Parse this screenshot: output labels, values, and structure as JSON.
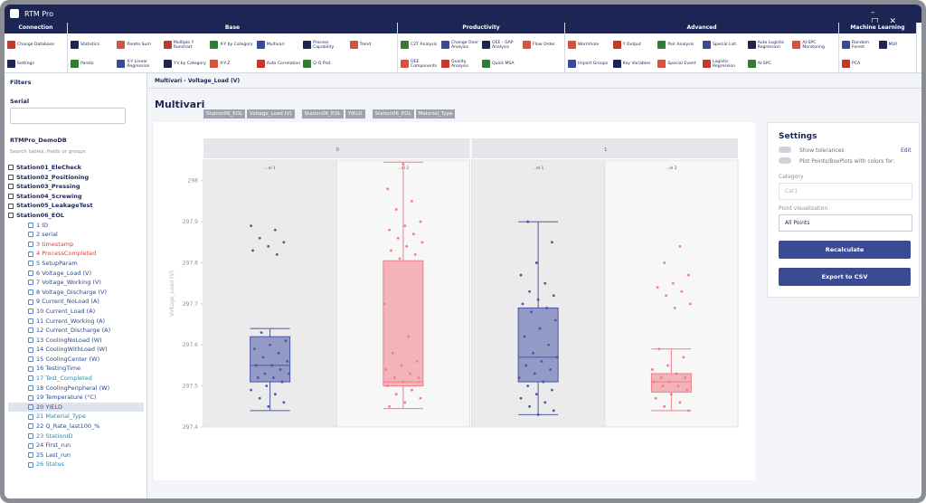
{
  "app": {
    "title": "RTM Pro"
  },
  "ribbon": {
    "groups": [
      {
        "name": "Connection",
        "buttons": [
          "Change Database",
          "Settings"
        ]
      },
      {
        "name": "Base",
        "buttons": [
          "Statistics",
          "Pareto",
          "Pareto Sum",
          "X-Y Linear Regression",
          "Multiple Y Runchart",
          "Y's by Category",
          "X-Y by Category",
          "X-Y-Z",
          "Multivari",
          "Auto Correlation",
          "Process Capability",
          "Q-Q Plot",
          "Trend"
        ]
      },
      {
        "name": "Productivity",
        "buttons": [
          "C2T Analysis",
          "OEE Components",
          "Change Over Analysis",
          "Quality Analysis",
          "OEE - GAP Analysis",
          "Quick MSA",
          "Flow Order"
        ]
      },
      {
        "name": "Advanced",
        "buttons": [
          "Wormhole",
          "Import Groups",
          "Y Output",
          "Key Variables",
          "Pair Analysis",
          "Special Event",
          "Special List",
          "Logistic Regression",
          "Auto Logistic Regression",
          "AI-SPC",
          "AI-SPC Monitoring"
        ]
      },
      {
        "name": "Machine Learning",
        "buttons": [
          "Random Forest",
          "PCA",
          "MLR"
        ]
      }
    ]
  },
  "filters": {
    "title": "Filters",
    "serial_label": "Serial",
    "db_name": "RTMPro_DemoDB",
    "search_placeholder": "Search tables, fields or groups",
    "tables": [
      "Station01_EleCheck",
      "Station02_Positioning",
      "Station03_Pressing",
      "Station04_Screwing",
      "Station05_LeakageTest",
      "Station06_EOL"
    ],
    "fields": [
      {
        "label": "1 ID",
        "color": "#2b4a8a"
      },
      {
        "label": "2 serial",
        "color": "#2b4a8a"
      },
      {
        "label": "3 timestamp",
        "color": "#e03a3a"
      },
      {
        "label": "4 ProcessCompleted",
        "color": "#e03a3a"
      },
      {
        "label": "5 SetupParam",
        "color": "#2b4a8a"
      },
      {
        "label": "6 Voltage_Load (V)",
        "color": "#2b4a8a"
      },
      {
        "label": "7 Voltage_Working (V)",
        "color": "#2b4a8a"
      },
      {
        "label": "8 Voltage_Discharge (V)",
        "color": "#2b4a8a"
      },
      {
        "label": "9 Current_NoLoad (A)",
        "color": "#2b4a8a"
      },
      {
        "label": "10 Current_Load (A)",
        "color": "#2b4a8a"
      },
      {
        "label": "11 Current_Working (A)",
        "color": "#2b4a8a"
      },
      {
        "label": "12 Current_Discharge (A)",
        "color": "#2b4a8a"
      },
      {
        "label": "13 CoolingNoLoad (W)",
        "color": "#2b4a8a"
      },
      {
        "label": "14 CoolingWithLoad (W)",
        "color": "#2b4a8a"
      },
      {
        "label": "15 CoolingCenter (W)",
        "color": "#2b4a8a"
      },
      {
        "label": "16 TestingTime",
        "color": "#2b4a8a"
      },
      {
        "label": "17 Test_Completed",
        "color": "#2a8ab0"
      },
      {
        "label": "18 CoolingPeripheral (W)",
        "color": "#2b4a8a"
      },
      {
        "label": "19 Temperature (°C)",
        "color": "#2b4a8a"
      },
      {
        "label": "20 YIELD",
        "color": "#2b4a8a"
      },
      {
        "label": "21 Material_Type",
        "color": "#2a8ab0"
      },
      {
        "label": "22 Q_Rate_last100_%",
        "color": "#2b4a8a"
      },
      {
        "label": "23 StationID",
        "color": "#2a8ab0"
      },
      {
        "label": "24 First_run",
        "color": "#2b4a8a"
      },
      {
        "label": "25 Last_run",
        "color": "#2b4a8a"
      },
      {
        "label": "26 Status",
        "color": "#2a8ab0"
      }
    ]
  },
  "tab": "Multivari - Voltage_Load (V)",
  "chart_header": {
    "title": "Multivari",
    "chips": [
      "Station06_EOL",
      "Voltage_Load (V)",
      "Station06_EOL",
      "YIELD",
      "Station06_EOL",
      "Material_Type"
    ]
  },
  "settings": {
    "title": "Settings",
    "show_tolerances": "Show tolerances",
    "edit": "Edit",
    "plot_colors": "Plot Points/BoxPlots with colors for:",
    "category_label": "Category",
    "category_value": "Cat1",
    "point_vis_label": "Point visualization",
    "point_vis_value": "All Points",
    "recalculate": "Recalculate",
    "export": "Export to CSV"
  },
  "chart_data": {
    "type": "multivari",
    "y_label": "Voltage_Load (V)",
    "ylim": [
      297.4,
      298.05
    ],
    "yticks": [
      297.4,
      297.5,
      297.6,
      297.7,
      297.8,
      297.9,
      298
    ],
    "panels": [
      {
        "name": "0",
        "groups": [
          {
            "name": "...el 1",
            "color": "#4a57a8",
            "whisker_low": 297.44,
            "q1": 297.51,
            "median": 297.55,
            "q3": 297.62,
            "whisker_high": 297.64,
            "points": [
              297.89,
              297.88,
              297.86,
              297.85,
              297.84,
              297.83,
              297.82,
              297.63,
              297.61,
              297.6,
              297.59,
              297.58,
              297.57,
              297.56,
              297.55,
              297.55,
              297.54,
              297.53,
              297.53,
              297.52,
              297.52,
              297.51,
              297.5,
              297.49,
              297.48,
              297.47,
              297.46,
              297.45
            ]
          },
          {
            "name": "...el 2",
            "color": "#f07e86",
            "whisker_low": 297.445,
            "q1": 297.5,
            "median": 297.51,
            "q3": 297.805,
            "whisker_high": 298.045,
            "points": [
              298.04,
              297.98,
              297.95,
              297.93,
              297.9,
              297.89,
              297.88,
              297.87,
              297.86,
              297.85,
              297.84,
              297.83,
              297.82,
              297.81,
              297.7,
              297.62,
              297.58,
              297.56,
              297.55,
              297.54,
              297.53,
              297.52,
              297.52,
              297.51,
              297.5,
              297.49,
              297.48,
              297.47,
              297.46,
              297.45
            ]
          }
        ]
      },
      {
        "name": "1",
        "groups": [
          {
            "name": "...el 1",
            "color": "#4a57a8",
            "whisker_low": 297.43,
            "q1": 297.51,
            "median": 297.57,
            "q3": 297.69,
            "whisker_high": 297.9,
            "points": [
              297.9,
              297.85,
              297.8,
              297.77,
              297.75,
              297.73,
              297.72,
              297.71,
              297.7,
              297.69,
              297.68,
              297.66,
              297.64,
              297.62,
              297.6,
              297.58,
              297.57,
              297.56,
              297.55,
              297.54,
              297.53,
              297.52,
              297.51,
              297.5,
              297.49,
              297.48,
              297.47,
              297.46,
              297.45,
              297.44,
              297.43
            ]
          },
          {
            "name": "...el 2",
            "color": "#f07e86",
            "whisker_low": 297.44,
            "q1": 297.485,
            "median": 297.51,
            "q3": 297.53,
            "whisker_high": 297.59,
            "points": [
              297.84,
              297.8,
              297.77,
              297.75,
              297.74,
              297.73,
              297.72,
              297.7,
              297.69,
              297.59,
              297.57,
              297.55,
              297.54,
              297.53,
              297.52,
              297.52,
              297.51,
              297.51,
              297.5,
              297.5,
              297.49,
              297.48,
              297.47,
              297.46,
              297.45,
              297.44
            ]
          }
        ]
      }
    ]
  }
}
